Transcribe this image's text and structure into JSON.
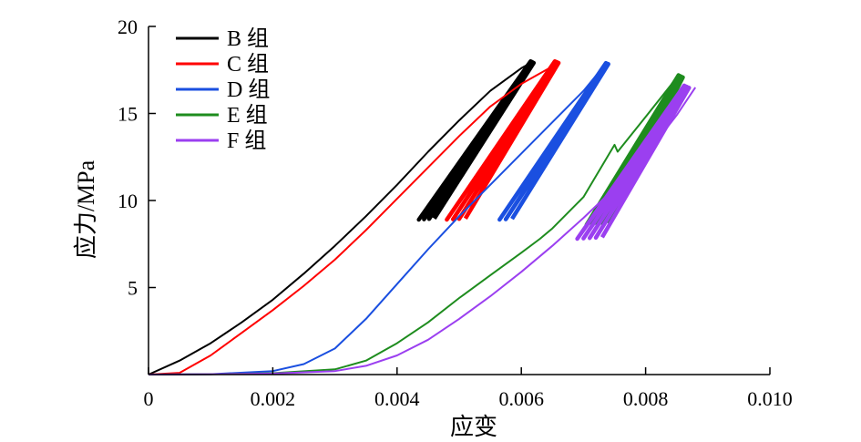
{
  "chart_data": {
    "type": "line",
    "xlabel": "应变",
    "ylabel": "应力/MPa",
    "xlim": [
      0,
      0.01
    ],
    "ylim": [
      0,
      20
    ],
    "xticks": [
      0,
      0.002,
      0.004,
      0.006,
      0.008,
      0.01
    ],
    "xtick_labels": [
      "0",
      "0.002",
      "0.004",
      "0.006",
      "0.008",
      "0.010"
    ],
    "yticks": [
      5,
      10,
      15,
      20
    ],
    "ytick_labels": [
      "5",
      "10",
      "15",
      "20"
    ],
    "grid": false,
    "legend_position": "top-left",
    "series": [
      {
        "name": "B 组",
        "color": "#000000",
        "loading": [
          [
            0,
            0
          ],
          [
            0.0005,
            0.8
          ],
          [
            0.001,
            1.8
          ],
          [
            0.0015,
            3.0
          ],
          [
            0.002,
            4.3
          ],
          [
            0.0025,
            5.8
          ],
          [
            0.003,
            7.4
          ],
          [
            0.0035,
            9.1
          ],
          [
            0.004,
            10.9
          ],
          [
            0.0045,
            12.8
          ],
          [
            0.005,
            14.6
          ],
          [
            0.0055,
            16.3
          ],
          [
            0.006,
            17.6
          ],
          [
            0.0062,
            18.0
          ]
        ],
        "cycle_band": {
          "bottom": [
            0.00435,
            8.9
          ],
          "top": [
            0.0062,
            18.0
          ],
          "width": 0.00025,
          "cycles": 4
        }
      },
      {
        "name": "C 组",
        "color": "#ff0000",
        "loading": [
          [
            0,
            0
          ],
          [
            0.0005,
            0.1
          ],
          [
            0.001,
            1.1
          ],
          [
            0.0015,
            2.4
          ],
          [
            0.002,
            3.7
          ],
          [
            0.0025,
            5.1
          ],
          [
            0.003,
            6.6
          ],
          [
            0.0035,
            8.3
          ],
          [
            0.004,
            10.1
          ],
          [
            0.0045,
            11.9
          ],
          [
            0.005,
            13.7
          ],
          [
            0.0055,
            15.4
          ],
          [
            0.006,
            16.7
          ],
          [
            0.0065,
            17.7
          ],
          [
            0.0066,
            18.0
          ]
        ],
        "cycle_band": {
          "bottom": [
            0.0048,
            8.9
          ],
          "top": [
            0.0066,
            18.0
          ],
          "width": 0.0003,
          "cycles": 4
        }
      },
      {
        "name": "D 组",
        "color": "#1a4fe0",
        "loading": [
          [
            0,
            0
          ],
          [
            0.001,
            0.02
          ],
          [
            0.002,
            0.2
          ],
          [
            0.0025,
            0.6
          ],
          [
            0.003,
            1.5
          ],
          [
            0.0035,
            3.2
          ],
          [
            0.004,
            5.2
          ],
          [
            0.0045,
            7.2
          ],
          [
            0.005,
            9.1
          ],
          [
            0.0055,
            10.9
          ],
          [
            0.006,
            12.7
          ],
          [
            0.0065,
            14.5
          ],
          [
            0.007,
            16.3
          ],
          [
            0.0073,
            17.6
          ],
          [
            0.0074,
            17.9
          ]
        ],
        "cycle_band": {
          "bottom": [
            0.00565,
            8.9
          ],
          "top": [
            0.0074,
            17.9
          ],
          "width": 0.0002,
          "cycles": 3
        }
      },
      {
        "name": "E 组",
        "color": "#1e8c1e",
        "loading": [
          [
            0,
            0
          ],
          [
            0.001,
            0.02
          ],
          [
            0.002,
            0.08
          ],
          [
            0.003,
            0.3
          ],
          [
            0.0035,
            0.8
          ],
          [
            0.004,
            1.8
          ],
          [
            0.0045,
            3.0
          ],
          [
            0.005,
            4.4
          ],
          [
            0.0055,
            5.7
          ],
          [
            0.006,
            7.0
          ],
          [
            0.0063,
            7.8
          ],
          [
            0.0065,
            8.4
          ],
          [
            0.007,
            10.2
          ],
          [
            0.0075,
            13.2
          ],
          [
            0.00755,
            12.8
          ],
          [
            0.008,
            14.8
          ],
          [
            0.0084,
            16.6
          ],
          [
            0.0085,
            17.1
          ]
        ],
        "cycle_band": {
          "bottom": [
            0.00705,
            8.6
          ],
          "top": [
            0.0086,
            17.2
          ],
          "width": 0.00035,
          "cycles": 5
        }
      },
      {
        "name": "F 组",
        "color": "#9b3ff0",
        "loading": [
          [
            0,
            0
          ],
          [
            0.001,
            0.02
          ],
          [
            0.002,
            0.06
          ],
          [
            0.003,
            0.2
          ],
          [
            0.0035,
            0.5
          ],
          [
            0.004,
            1.1
          ],
          [
            0.0045,
            2.0
          ],
          [
            0.005,
            3.2
          ],
          [
            0.0055,
            4.5
          ],
          [
            0.006,
            5.9
          ],
          [
            0.0065,
            7.4
          ],
          [
            0.007,
            9.0
          ],
          [
            0.0075,
            10.7
          ],
          [
            0.008,
            12.6
          ],
          [
            0.0085,
            14.9
          ],
          [
            0.0088,
            16.5
          ]
        ],
        "cycle_band": {
          "bottom": [
            0.0069,
            7.8
          ],
          "top": [
            0.0087,
            16.6
          ],
          "width": 0.0004,
          "cycles": 5
        }
      }
    ]
  }
}
